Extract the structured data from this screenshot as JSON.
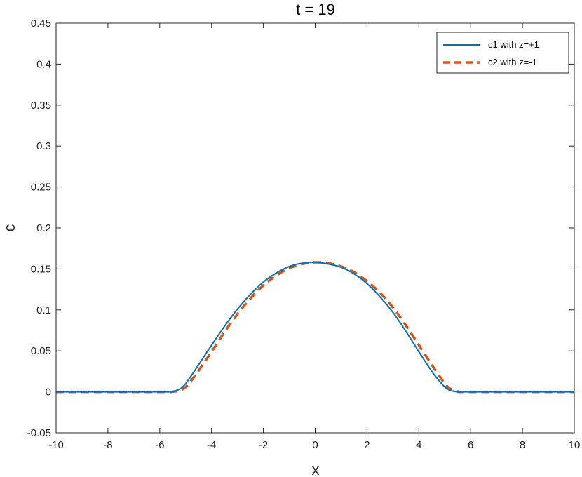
{
  "chart_data": {
    "type": "line",
    "title": "t = 19",
    "xlabel": "x",
    "ylabel": "c",
    "xlim": [
      -10,
      10
    ],
    "ylim": [
      -0.05,
      0.45
    ],
    "xticks": [
      -10,
      -8,
      -6,
      -4,
      -2,
      0,
      2,
      4,
      6,
      8,
      10
    ],
    "yticks": [
      -0.05,
      0,
      0.05,
      0.1,
      0.15,
      0.2,
      0.25,
      0.3,
      0.35,
      0.4,
      0.45
    ],
    "xtick_labels": [
      "-10",
      "-8",
      "-6",
      "-4",
      "-2",
      "0",
      "2",
      "4",
      "6",
      "8",
      "10"
    ],
    "ytick_labels": [
      "-0.05",
      "0",
      "0.05",
      "0.1",
      "0.15",
      "0.2",
      "0.25",
      "0.3",
      "0.35",
      "0.4",
      "0.45"
    ],
    "grid": false,
    "legend_position": "top-right",
    "series": [
      {
        "name": "c1 with z=+1",
        "color": "#0072BD",
        "style": "solid",
        "x": [
          -10,
          -6,
          -5.5,
          -5.2,
          -5.0,
          -4.8,
          -4.5,
          -4.0,
          -3.5,
          -3.0,
          -2.5,
          -2.0,
          -1.5,
          -1.0,
          -0.5,
          0,
          0.5,
          1.0,
          1.5,
          2.0,
          2.5,
          3.0,
          3.5,
          4.0,
          4.5,
          4.8,
          5.0,
          5.2,
          5.5,
          6,
          10
        ],
        "y": [
          0,
          0,
          0.0005,
          0.004,
          0.01,
          0.019,
          0.033,
          0.057,
          0.08,
          0.101,
          0.119,
          0.134,
          0.145,
          0.153,
          0.157,
          0.158,
          0.156,
          0.152,
          0.144,
          0.132,
          0.116,
          0.097,
          0.074,
          0.049,
          0.025,
          0.013,
          0.006,
          0.002,
          0.0002,
          0,
          0
        ]
      },
      {
        "name": "c2 with z=-1",
        "color": "#D95319",
        "style": "dashed",
        "x": [
          -10,
          -6,
          -5.5,
          -5.2,
          -5.0,
          -4.8,
          -4.5,
          -4.0,
          -3.5,
          -3.0,
          -2.5,
          -2.0,
          -1.5,
          -1.0,
          -0.5,
          0,
          0.5,
          1.0,
          1.5,
          2.0,
          2.5,
          3.0,
          3.5,
          4.0,
          4.5,
          4.8,
          5.0,
          5.2,
          5.5,
          6,
          10
        ],
        "y": [
          0,
          0,
          0.0002,
          0.002,
          0.006,
          0.013,
          0.026,
          0.049,
          0.073,
          0.095,
          0.114,
          0.13,
          0.142,
          0.151,
          0.156,
          0.158,
          0.157,
          0.153,
          0.146,
          0.135,
          0.121,
          0.103,
          0.081,
          0.057,
          0.033,
          0.019,
          0.01,
          0.004,
          0.0005,
          0,
          0
        ]
      }
    ]
  }
}
